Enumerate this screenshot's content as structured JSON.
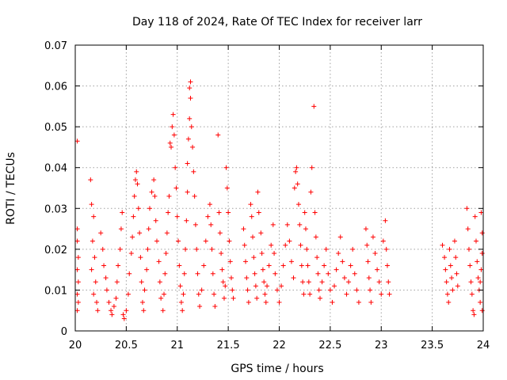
{
  "chart_data": {
    "type": "scatter",
    "title": "Day 118 of 2024, Rate Of TEC Index for receiver larr",
    "xlabel": "GPS time / hours",
    "ylabel": "ROTI / TECUs",
    "xlim": [
      20,
      24
    ],
    "ylim": [
      0,
      0.07
    ],
    "xticks": [
      20,
      20.5,
      21,
      21.5,
      22,
      22.5,
      23,
      23.5,
      24
    ],
    "xtick_labels": [
      "20",
      "20.5",
      "21",
      "21.5",
      "22",
      "22.5",
      "23",
      "23.5",
      "24"
    ],
    "yticks": [
      0,
      0.01,
      0.02,
      0.03,
      0.04,
      0.05,
      0.06,
      0.07
    ],
    "ytick_labels": [
      "0",
      "0.01",
      "0.02",
      "0.03",
      "0.04",
      "0.05",
      "0.06",
      "0.07"
    ],
    "grid": true,
    "marker": "plus",
    "marker_color": "#ff0000",
    "series": [
      {
        "name": "ROTI",
        "points": [
          [
            20.02,
            0.0465
          ],
          [
            20.02,
            0.025
          ],
          [
            20.02,
            0.022
          ],
          [
            20.03,
            0.018
          ],
          [
            20.02,
            0.015
          ],
          [
            20.03,
            0.012
          ],
          [
            20.02,
            0.009
          ],
          [
            20.03,
            0.007
          ],
          [
            20.02,
            0.005
          ],
          [
            20.15,
            0.037
          ],
          [
            20.16,
            0.031
          ],
          [
            20.18,
            0.028
          ],
          [
            20.17,
            0.022
          ],
          [
            20.19,
            0.018
          ],
          [
            20.16,
            0.015
          ],
          [
            20.2,
            0.012
          ],
          [
            20.18,
            0.009
          ],
          [
            20.21,
            0.007
          ],
          [
            20.22,
            0.005
          ],
          [
            20.25,
            0.024
          ],
          [
            20.27,
            0.02
          ],
          [
            20.28,
            0.016
          ],
          [
            20.3,
            0.013
          ],
          [
            20.31,
            0.01
          ],
          [
            20.33,
            0.007
          ],
          [
            20.35,
            0.005
          ],
          [
            20.36,
            0.004
          ],
          [
            20.38,
            0.006
          ],
          [
            20.4,
            0.008
          ],
          [
            20.41,
            0.012
          ],
          [
            20.42,
            0.016
          ],
          [
            20.44,
            0.02
          ],
          [
            20.45,
            0.025
          ],
          [
            20.46,
            0.029
          ],
          [
            20.47,
            0.004
          ],
          [
            20.48,
            0.003
          ],
          [
            20.5,
            0.005
          ],
          [
            20.52,
            0.009
          ],
          [
            20.53,
            0.014
          ],
          [
            20.55,
            0.019
          ],
          [
            20.56,
            0.023
          ],
          [
            20.57,
            0.028
          ],
          [
            20.58,
            0.033
          ],
          [
            20.59,
            0.037
          ],
          [
            20.6,
            0.039
          ],
          [
            20.61,
            0.036
          ],
          [
            20.62,
            0.03
          ],
          [
            20.63,
            0.024
          ],
          [
            20.64,
            0.018
          ],
          [
            20.65,
            0.012
          ],
          [
            20.66,
            0.007
          ],
          [
            20.67,
            0.005
          ],
          [
            20.68,
            0.01
          ],
          [
            20.7,
            0.015
          ],
          [
            20.71,
            0.02
          ],
          [
            20.72,
            0.025
          ],
          [
            20.73,
            0.03
          ],
          [
            20.75,
            0.034
          ],
          [
            20.77,
            0.037
          ],
          [
            20.78,
            0.033
          ],
          [
            20.79,
            0.027
          ],
          [
            20.8,
            0.022
          ],
          [
            20.82,
            0.017
          ],
          [
            20.83,
            0.012
          ],
          [
            20.84,
            0.008
          ],
          [
            20.86,
            0.005
          ],
          [
            20.87,
            0.009
          ],
          [
            20.88,
            0.014
          ],
          [
            20.89,
            0.019
          ],
          [
            20.9,
            0.024
          ],
          [
            20.91,
            0.029
          ],
          [
            20.92,
            0.033
          ],
          [
            20.93,
            0.046
          ],
          [
            20.94,
            0.045
          ],
          [
            20.95,
            0.05
          ],
          [
            20.96,
            0.053
          ],
          [
            20.97,
            0.048
          ],
          [
            20.98,
            0.04
          ],
          [
            20.99,
            0.035
          ],
          [
            21.0,
            0.028
          ],
          [
            21.01,
            0.022
          ],
          [
            21.02,
            0.016
          ],
          [
            21.03,
            0.011
          ],
          [
            21.04,
            0.007
          ],
          [
            21.05,
            0.005
          ],
          [
            21.06,
            0.009
          ],
          [
            21.07,
            0.014
          ],
          [
            21.08,
            0.02
          ],
          [
            21.09,
            0.027
          ],
          [
            21.1,
            0.034
          ],
          [
            21.1,
            0.041
          ],
          [
            21.11,
            0.047
          ],
          [
            21.12,
            0.052
          ],
          [
            21.12,
            0.0595
          ],
          [
            21.13,
            0.061
          ],
          [
            21.13,
            0.057
          ],
          [
            21.14,
            0.05
          ],
          [
            21.15,
            0.045
          ],
          [
            21.16,
            0.039
          ],
          [
            21.17,
            0.033
          ],
          [
            21.18,
            0.026
          ],
          [
            21.19,
            0.02
          ],
          [
            21.2,
            0.014
          ],
          [
            21.21,
            0.009
          ],
          [
            21.22,
            0.006
          ],
          [
            21.24,
            0.01
          ],
          [
            21.26,
            0.016
          ],
          [
            21.28,
            0.022
          ],
          [
            21.3,
            0.028
          ],
          [
            21.32,
            0.031
          ],
          [
            21.33,
            0.026
          ],
          [
            21.34,
            0.02
          ],
          [
            21.35,
            0.014
          ],
          [
            21.36,
            0.009
          ],
          [
            21.37,
            0.006
          ],
          [
            21.4,
            0.048
          ],
          [
            21.41,
            0.029
          ],
          [
            21.42,
            0.024
          ],
          [
            21.43,
            0.019
          ],
          [
            21.44,
            0.015
          ],
          [
            21.45,
            0.012
          ],
          [
            21.46,
            0.008
          ],
          [
            21.47,
            0.011
          ],
          [
            21.48,
            0.04
          ],
          [
            21.49,
            0.035
          ],
          [
            21.5,
            0.029
          ],
          [
            21.51,
            0.022
          ],
          [
            21.52,
            0.017
          ],
          [
            21.53,
            0.013
          ],
          [
            21.54,
            0.01
          ],
          [
            21.55,
            0.008
          ],
          [
            21.65,
            0.025
          ],
          [
            21.66,
            0.021
          ],
          [
            21.67,
            0.017
          ],
          [
            21.68,
            0.013
          ],
          [
            21.69,
            0.01
          ],
          [
            21.7,
            0.007
          ],
          [
            21.72,
            0.031
          ],
          [
            21.73,
            0.028
          ],
          [
            21.74,
            0.023
          ],
          [
            21.75,
            0.018
          ],
          [
            21.76,
            0.014
          ],
          [
            21.77,
            0.011
          ],
          [
            21.78,
            0.008
          ],
          [
            21.79,
            0.034
          ],
          [
            21.8,
            0.029
          ],
          [
            21.82,
            0.024
          ],
          [
            21.83,
            0.019
          ],
          [
            21.84,
            0.015
          ],
          [
            21.85,
            0.012
          ],
          [
            21.86,
            0.009
          ],
          [
            21.87,
            0.007
          ],
          [
            21.88,
            0.011
          ],
          [
            21.9,
            0.016
          ],
          [
            21.92,
            0.021
          ],
          [
            21.94,
            0.026
          ],
          [
            21.95,
            0.019
          ],
          [
            21.96,
            0.014
          ],
          [
            21.98,
            0.01
          ],
          [
            22.0,
            0.007
          ],
          [
            22.02,
            0.011
          ],
          [
            22.04,
            0.016
          ],
          [
            22.06,
            0.021
          ],
          [
            22.08,
            0.026
          ],
          [
            22.1,
            0.022
          ],
          [
            22.12,
            0.017
          ],
          [
            22.14,
            0.013
          ],
          [
            22.15,
            0.035
          ],
          [
            22.16,
            0.039
          ],
          [
            22.17,
            0.04
          ],
          [
            22.18,
            0.036
          ],
          [
            22.19,
            0.031
          ],
          [
            22.2,
            0.026
          ],
          [
            22.21,
            0.021
          ],
          [
            22.22,
            0.016
          ],
          [
            22.23,
            0.012
          ],
          [
            22.24,
            0.009
          ],
          [
            22.25,
            0.029
          ],
          [
            22.26,
            0.025
          ],
          [
            22.27,
            0.02
          ],
          [
            22.28,
            0.016
          ],
          [
            22.29,
            0.012
          ],
          [
            22.3,
            0.009
          ],
          [
            22.31,
            0.034
          ],
          [
            22.32,
            0.04
          ],
          [
            22.34,
            0.055
          ],
          [
            22.35,
            0.029
          ],
          [
            22.36,
            0.023
          ],
          [
            22.37,
            0.018
          ],
          [
            22.38,
            0.014
          ],
          [
            22.39,
            0.01
          ],
          [
            22.4,
            0.008
          ],
          [
            22.42,
            0.012
          ],
          [
            22.44,
            0.016
          ],
          [
            22.46,
            0.02
          ],
          [
            22.48,
            0.014
          ],
          [
            22.5,
            0.01
          ],
          [
            22.52,
            0.007
          ],
          [
            22.54,
            0.011
          ],
          [
            22.56,
            0.015
          ],
          [
            22.58,
            0.019
          ],
          [
            22.6,
            0.023
          ],
          [
            22.62,
            0.017
          ],
          [
            22.64,
            0.013
          ],
          [
            22.66,
            0.009
          ],
          [
            22.68,
            0.012
          ],
          [
            22.7,
            0.016
          ],
          [
            22.72,
            0.02
          ],
          [
            22.74,
            0.014
          ],
          [
            22.76,
            0.01
          ],
          [
            22.78,
            0.007
          ],
          [
            22.85,
            0.025
          ],
          [
            22.86,
            0.021
          ],
          [
            22.87,
            0.017
          ],
          [
            22.88,
            0.013
          ],
          [
            22.89,
            0.01
          ],
          [
            22.9,
            0.007
          ],
          [
            22.92,
            0.023
          ],
          [
            22.94,
            0.019
          ],
          [
            22.96,
            0.015
          ],
          [
            22.98,
            0.012
          ],
          [
            23.0,
            0.009
          ],
          [
            23.02,
            0.022
          ],
          [
            23.04,
            0.027
          ],
          [
            23.05,
            0.02
          ],
          [
            23.06,
            0.016
          ],
          [
            23.07,
            0.012
          ],
          [
            23.08,
            0.009
          ],
          [
            23.6,
            0.021
          ],
          [
            23.62,
            0.018
          ],
          [
            23.63,
            0.015
          ],
          [
            23.64,
            0.012
          ],
          [
            23.65,
            0.009
          ],
          [
            23.66,
            0.007
          ],
          [
            23.67,
            0.02
          ],
          [
            23.68,
            0.016
          ],
          [
            23.69,
            0.013
          ],
          [
            23.7,
            0.01
          ],
          [
            23.72,
            0.022
          ],
          [
            23.73,
            0.018
          ],
          [
            23.74,
            0.014
          ],
          [
            23.75,
            0.011
          ],
          [
            23.84,
            0.03
          ],
          [
            23.85,
            0.025
          ],
          [
            23.86,
            0.02
          ],
          [
            23.87,
            0.016
          ],
          [
            23.88,
            0.012
          ],
          [
            23.89,
            0.009
          ],
          [
            23.9,
            0.005
          ],
          [
            23.91,
            0.004
          ],
          [
            23.92,
            0.028
          ],
          [
            23.93,
            0.022
          ],
          [
            23.94,
            0.017
          ],
          [
            23.95,
            0.013
          ],
          [
            23.96,
            0.01
          ],
          [
            23.97,
            0.007
          ],
          [
            23.98,
            0.029
          ],
          [
            23.99,
            0.024
          ],
          [
            23.99,
            0.019
          ],
          [
            23.98,
            0.015
          ],
          [
            23.97,
            0.012
          ],
          [
            23.99,
            0.005
          ]
        ]
      }
    ]
  }
}
